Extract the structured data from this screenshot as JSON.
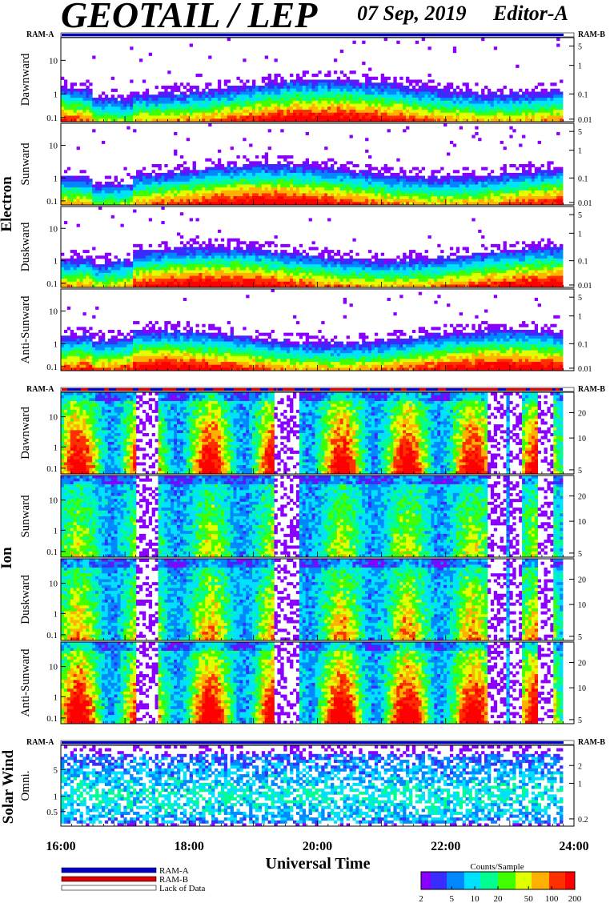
{
  "header": {
    "title": "GEOTAIL / LEP",
    "date": "07 Sep, 2019",
    "editor": "Editor-A"
  },
  "ram_labels": {
    "a": "RAM-A",
    "b": "RAM-B"
  },
  "groups": [
    {
      "name": "Electron",
      "panels": [
        "Dawnward",
        "Sunward",
        "Duskward",
        "Anti-Sunward"
      ]
    },
    {
      "name": "Ion",
      "panels": [
        "Dawnward",
        "Sunward",
        "Duskward",
        "Anti-Sunward"
      ]
    },
    {
      "name": "Solar Wind",
      "panels": [
        "Omni."
      ]
    }
  ],
  "colors": {
    "ram_a": "#0000cc",
    "ram_b": "#dd0000",
    "colorscale": [
      "#8a00ff",
      "#3a2cff",
      "#0088ff",
      "#00e0ff",
      "#00ff90",
      "#40ff00",
      "#e0ff00",
      "#ffb000",
      "#ff3000",
      "#ff0000"
    ]
  },
  "chart_data": {
    "type": "heatmap",
    "xlabel": "Universal Time",
    "x_ticks": [
      "16:00",
      "18:00",
      "20:00",
      "22:00",
      "24:00"
    ],
    "xlim": [
      "16:00",
      "24:00"
    ],
    "electron_left_ticks": [
      "10",
      "1",
      "0.1"
    ],
    "electron_right_ticks": [
      "5",
      "1",
      "0.1",
      "0.01"
    ],
    "ion_left_ticks": [
      "10",
      "1",
      "0.1"
    ],
    "ion_right_ticks": [
      "20",
      "10",
      "5"
    ],
    "solarwind_left_ticks": [
      "5",
      "1",
      "0.5"
    ],
    "solarwind_right_ticks": [
      "2",
      "1",
      "0.2"
    ],
    "colorbar": {
      "title": "Counts/Sample",
      "ticks": [
        "2",
        "5",
        "10",
        "20",
        "50",
        "100",
        "200"
      ]
    }
  },
  "legend": [
    {
      "label": "RAM-A"
    },
    {
      "label": "RAM-B"
    },
    {
      "label": "Lack of Data"
    }
  ]
}
